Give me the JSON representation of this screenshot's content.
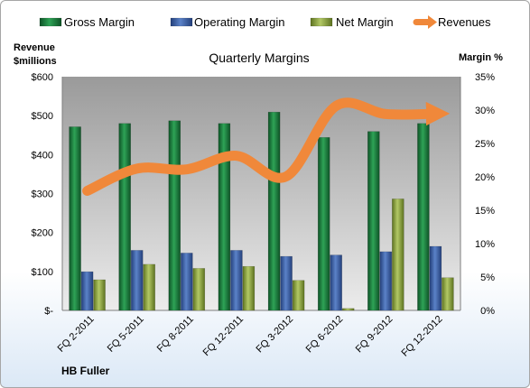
{
  "chart_data": {
    "type": "bar",
    "title": "Quarterly Margins",
    "y_left_label_line1": "Revenue",
    "y_left_label_line2": "$millions",
    "y_right_label": "Margin %",
    "source": "HB Fuller",
    "categories": [
      "FQ 2-2011",
      "FQ 5-2011",
      "FQ 8-2011",
      "FQ 12-2011",
      "FQ 3-2012",
      "FQ 6-2012",
      "FQ 9-2012",
      "FQ 12-2012"
    ],
    "y_left_ticks": [
      "$-",
      "$100",
      "$200",
      "$300",
      "$400",
      "$500",
      "$600"
    ],
    "y_right_ticks": [
      "0%",
      "5%",
      "10%",
      "15%",
      "20%",
      "25%",
      "30%",
      "35%"
    ],
    "y_left_range": [
      0,
      600
    ],
    "y_right_range": [
      0,
      35
    ],
    "grid": false,
    "legend_position": "top",
    "series": [
      {
        "name": "Gross Margin",
        "kind": "bar",
        "axis": "right",
        "unit": "%",
        "color": "#1e7a3e",
        "values": [
          27.5,
          28.0,
          28.4,
          28.0,
          29.7,
          25.9,
          26.8,
          28.0
        ]
      },
      {
        "name": "Operating Margin",
        "kind": "bar",
        "axis": "right",
        "unit": "%",
        "color": "#3a5fa8",
        "values": [
          5.8,
          9.0,
          8.6,
          9.0,
          8.1,
          8.3,
          8.8,
          9.6
        ]
      },
      {
        "name": "Net Margin",
        "kind": "bar",
        "axis": "right",
        "unit": "%",
        "color": "#8aa43a",
        "values": [
          4.6,
          6.9,
          6.3,
          6.6,
          4.5,
          0.3,
          16.7,
          4.9
        ]
      },
      {
        "name": "Revenues",
        "kind": "line",
        "axis": "left",
        "unit": "$M",
        "color": "#f0883a",
        "values": [
          307,
          364,
          362,
          397,
          344,
          525,
          504,
          505
        ]
      }
    ]
  }
}
